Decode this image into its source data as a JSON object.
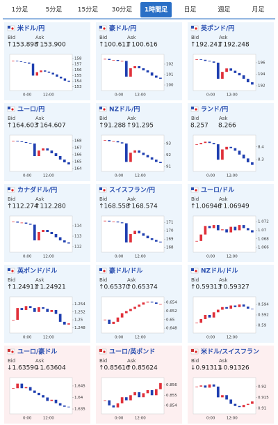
{
  "tabs": {
    "items": [
      "1分足",
      "5分足",
      "15分足",
      "30分足",
      "1時間足",
      "日足",
      "週足",
      "月足"
    ],
    "active": 4
  },
  "labels": {
    "bid": "Bid",
    "ask": "Ask"
  },
  "tiles": [
    {
      "name": "米ドル/円",
      "bid": "↑153.898",
      "ask": "↑153.900",
      "trend": "up",
      "chart": {
        "x_labels": [
          "0:00",
          "12:00"
        ],
        "ylim": [
          152.6,
          158.5
        ],
        "yticks": [
          158,
          157,
          156,
          155,
          154,
          153
        ],
        "closes": [
          157.6,
          157.5,
          157.4,
          157.3,
          157.1,
          155.0,
          155.6,
          155.9,
          155.7,
          155.5,
          155.2,
          154.8,
          154.5,
          154.1,
          153.9
        ]
      }
    },
    {
      "name": "豪ドル/円",
      "bid": "↑100.611",
      "ask": "↑100.616",
      "trend": "up",
      "chart": {
        "x_labels": [
          "0:00",
          "12:00"
        ],
        "ylim": [
          99.6,
          102.8
        ],
        "yticks": [
          102,
          101,
          100
        ],
        "closes": [
          102.5,
          102.4,
          102.4,
          102.3,
          102.3,
          100.8,
          101.6,
          101.8,
          101.6,
          101.4,
          101.2,
          100.9,
          100.7,
          100.6
        ]
      }
    },
    {
      "name": "英ポンド/円",
      "bid": "↑192.241",
      "ask": "↑192.248",
      "trend": "up",
      "chart": {
        "x_labels": [
          "0:00",
          "12:00"
        ],
        "ylim": [
          191.4,
          197.2
        ],
        "yticks": [
          196,
          194,
          192
        ],
        "closes": [
          196.6,
          196.5,
          196.3,
          196.2,
          196.0,
          193.2,
          194.4,
          195.0,
          194.6,
          194.2,
          193.8,
          193.2,
          192.6,
          192.2
        ]
      }
    },
    {
      "name": "ユーロ/円",
      "bid": "↑164.603",
      "ask": "↑164.607",
      "trend": "up",
      "chart": {
        "x_labels": [
          "0:00",
          "12:00"
        ],
        "ylim": [
          163.8,
          168.6
        ],
        "yticks": [
          168,
          167,
          166,
          165,
          164
        ],
        "closes": [
          168.0,
          167.9,
          167.8,
          167.7,
          167.6,
          165.8,
          166.6,
          166.9,
          166.6,
          166.2,
          165.8,
          165.3,
          164.9,
          164.6
        ]
      }
    },
    {
      "name": "NZドル/円",
      "bid": "↑91.288",
      "ask": "↑91.295",
      "trend": "up",
      "chart": {
        "x_labels": [
          "0:00",
          "12:00"
        ],
        "ylim": [
          90.7,
          93.6
        ],
        "yticks": [
          93,
          92,
          91
        ],
        "closes": [
          93.3,
          93.2,
          93.2,
          93.1,
          93.0,
          91.4,
          92.2,
          92.4,
          92.2,
          92.0,
          91.8,
          91.6,
          91.4,
          91.3
        ]
      }
    },
    {
      "name": "ランド/円",
      "bid": "8.257",
      "ask": "8.266",
      "chart": {
        "x_labels": [
          "0:00",
          "12:00"
        ],
        "ylim": [
          8.22,
          8.48
        ],
        "yticks": [
          8.4,
          8.3
        ],
        "closes": [
          8.42,
          8.43,
          8.44,
          8.43,
          8.42,
          8.3,
          8.38,
          8.4,
          8.39,
          8.37,
          8.34,
          8.31,
          8.28,
          8.26
        ]
      }
    },
    {
      "name": "カナダドル/円",
      "bid": "↑112.274",
      "ask": "↑112.280",
      "trend": "up",
      "chart": {
        "x_labels": [
          "0:00",
          "12:00"
        ],
        "ylim": [
          111.6,
          114.8
        ],
        "yticks": [
          114,
          113,
          112
        ],
        "closes": [
          114.4,
          114.3,
          114.3,
          114.2,
          114.1,
          112.6,
          113.4,
          113.6,
          113.4,
          113.2,
          112.9,
          112.6,
          112.4,
          112.3
        ]
      }
    },
    {
      "name": "スイスフラン/円",
      "bid": "↑168.558",
      "ask": "↑168.574",
      "trend": "up",
      "chart": {
        "x_labels": [
          "0:00",
          "12:00"
        ],
        "ylim": [
          167.6,
          171.6
        ],
        "yticks": [
          171,
          170,
          169,
          168
        ],
        "closes": [
          171.2,
          171.1,
          171.1,
          171.0,
          170.9,
          168.6,
          169.6,
          170.0,
          169.7,
          169.4,
          169.1,
          168.9,
          168.7,
          168.6
        ]
      }
    },
    {
      "name": "ユーロ/ドル",
      "bid": "↑1.06946",
      "ask": "↑1.06949",
      "trend": "up",
      "chart": {
        "x_labels": [
          "0:00",
          "12:00"
        ],
        "ylim": [
          1.0652,
          1.073
        ],
        "yticks": [
          1.072,
          1.07,
          1.068,
          1.066
        ],
        "closes": [
          1.0675,
          1.069,
          1.071,
          1.0705,
          1.0712,
          1.07,
          1.0702,
          1.0695,
          1.0708,
          1.07,
          1.0712,
          1.0705,
          1.07,
          1.0695
        ]
      }
    },
    {
      "name": "英ポンド/ドル",
      "bid": "↑1.24911",
      "ask": "↑1.24921",
      "trend": "up",
      "chart": {
        "x_labels": [
          "0:00",
          "12:00"
        ],
        "ylim": [
          1.247,
          1.2555
        ],
        "yticks": [
          1.254,
          1.252,
          1.25,
          1.248
        ],
        "closes": [
          1.25,
          1.253,
          1.2525,
          1.2535,
          1.253,
          1.252,
          1.2532,
          1.2528,
          1.252,
          1.2525,
          1.2515,
          1.2495,
          1.2488,
          1.2491
        ]
      }
    },
    {
      "name": "豪ドル/ドル",
      "bid": "↑0.65370",
      "ask": "↑0.65374",
      "trend": "up",
      "chart": {
        "x_labels": [
          "0:00",
          "12:00"
        ],
        "ylim": [
          0.6472,
          0.655
        ],
        "yticks": [
          0.654,
          0.652,
          0.65,
          0.648
        ],
        "closes": [
          0.65,
          0.649,
          0.6495,
          0.6505,
          0.6515,
          0.652,
          0.6525,
          0.653,
          0.6535,
          0.654,
          0.6542,
          0.654,
          0.6537,
          0.6537
        ]
      }
    },
    {
      "name": "NZドル/ドル",
      "bid": "↑0.59313",
      "ask": "↑0.59327",
      "trend": "up",
      "chart": {
        "x_labels": [
          "0:00",
          "12:00"
        ],
        "ylim": [
          0.5888,
          0.5952
        ],
        "yticks": [
          0.594,
          0.592,
          0.59
        ],
        "closes": [
          0.5905,
          0.5912,
          0.592,
          0.5915,
          0.5925,
          0.593,
          0.5935,
          0.5932,
          0.5938,
          0.5935,
          0.594,
          0.5936,
          0.5932,
          0.5931
        ]
      }
    },
    {
      "name": "ユーロ/豪ドル",
      "bid": "↓1.63590",
      "ask": "↓1.63604",
      "trend": "down",
      "chart": {
        "x_labels": [
          "0:00",
          "12:00"
        ],
        "ylim": [
          1.6335,
          1.648
        ],
        "yticks": [
          1.645,
          1.64,
          1.635
        ],
        "closes": [
          1.644,
          1.646,
          1.644,
          1.6445,
          1.643,
          1.642,
          1.641,
          1.64,
          1.6385,
          1.639,
          1.6375,
          1.6365,
          1.636,
          1.6359
        ]
      }
    },
    {
      "name": "ユーロ/英ポンド",
      "bid": "↑0.85616",
      "ask": "↑0.85624",
      "trend": "up",
      "chart": {
        "x_labels": [
          "0:00",
          "12:00"
        ],
        "ylim": [
          0.8533,
          0.8566
        ],
        "yticks": [
          0.856,
          0.855,
          0.854
        ],
        "closes": [
          0.8545,
          0.854,
          0.8538,
          0.8542,
          0.8548,
          0.8545,
          0.855,
          0.8553,
          0.8548,
          0.8552,
          0.8555,
          0.855,
          0.8556,
          0.8562
        ]
      }
    },
    {
      "name": "米ドル/スイスフラン",
      "bid": "↓0.91311",
      "ask": "↓0.91326",
      "trend": "down",
      "chart": {
        "x_labels": [
          "0:00",
          "12:00"
        ],
        "ylim": [
          0.908,
          0.9235
        ],
        "yticks": [
          0.92,
          0.915,
          0.91
        ],
        "closes": [
          0.92,
          0.9205,
          0.9195,
          0.921,
          0.92,
          0.915,
          0.916,
          0.914,
          0.912,
          0.911,
          0.9105,
          0.9115,
          0.912,
          0.9131
        ]
      }
    }
  ]
}
